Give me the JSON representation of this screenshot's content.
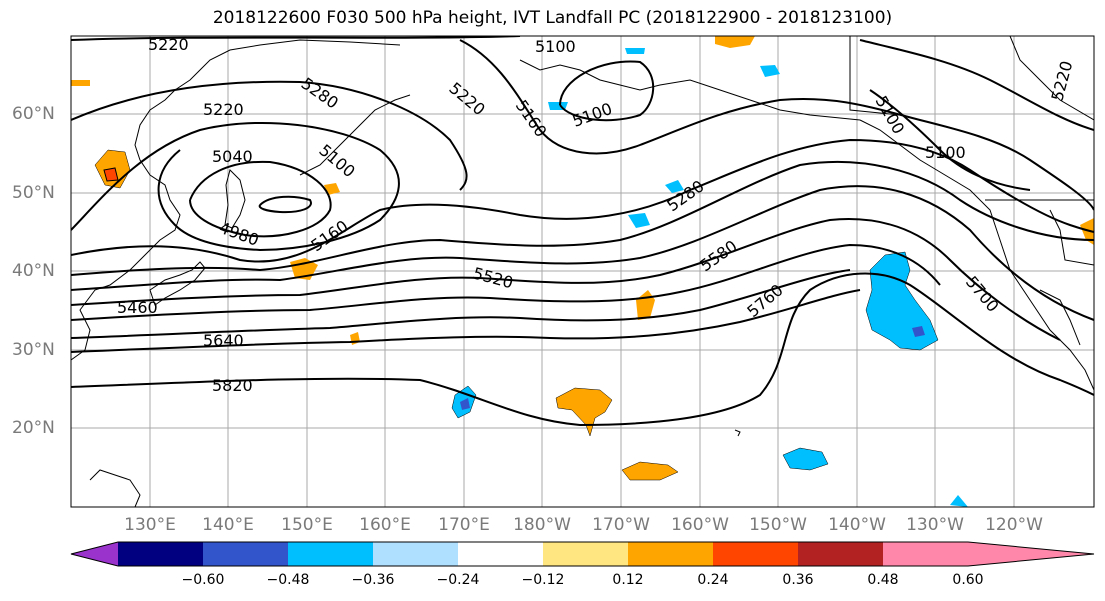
{
  "title": "2018122600 F030 500 hPa height, IVT Landfall PC (2018122900 - 2018123100)",
  "lat_labels": [
    "60°N",
    "50°N",
    "40°N",
    "30°N",
    "20°N"
  ],
  "lon_labels": [
    "130°E",
    "140°E",
    "150°E",
    "160°E",
    "170°E",
    "180°W",
    "170°W",
    "160°W",
    "150°W",
    "140°W",
    "130°W",
    "120°W"
  ],
  "contour_labels": [
    "5220",
    "5100",
    "5220",
    "5280",
    "5160",
    "5100",
    "5220",
    "5100",
    "5040",
    "4980",
    "5160",
    "5280",
    "5580",
    "5520",
    "5460",
    "5640",
    "5820",
    "5760",
    "5700",
    "5100",
    "5220",
    "5100"
  ],
  "colorbar": {
    "ticks": [
      "−0.60",
      "−0.48",
      "−0.36",
      "−0.24",
      "−0.12",
      "0.12",
      "0.24",
      "0.36",
      "0.48",
      "0.60"
    ],
    "colors": [
      "#9933cc",
      "#000080",
      "#3355cc",
      "#00bfff",
      "#b0e0ff",
      "#ffffff",
      "#ffe680",
      "#ffa500",
      "#ff4500",
      "#b22222",
      "#ff88aa",
      "#ff88aa"
    ]
  }
}
